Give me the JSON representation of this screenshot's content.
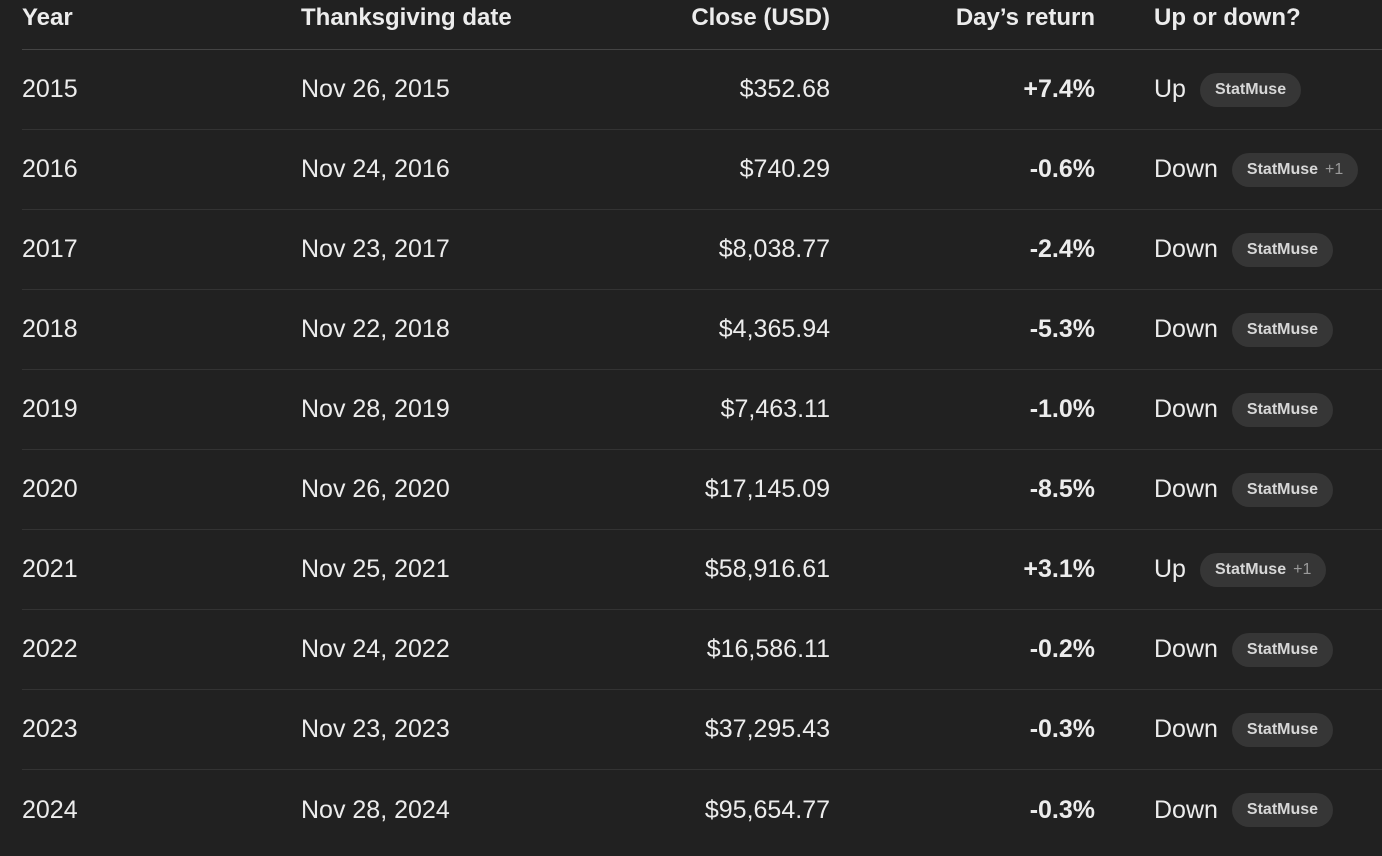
{
  "table": {
    "headers": {
      "year": "Year",
      "date": "Thanksgiving date",
      "close": "Close (USD)",
      "ret": "Day’s return",
      "dir": "Up or down?"
    },
    "rows": [
      {
        "year": "2015",
        "date": "Nov 26, 2015",
        "close": "$352.68",
        "ret": "+7.4%",
        "dir": "Up",
        "source": "StatMuse",
        "extra": ""
      },
      {
        "year": "2016",
        "date": "Nov 24, 2016",
        "close": "$740.29",
        "ret": "-0.6%",
        "dir": "Down",
        "source": "StatMuse",
        "extra": "+1"
      },
      {
        "year": "2017",
        "date": "Nov 23, 2017",
        "close": "$8,038.77",
        "ret": "-2.4%",
        "dir": "Down",
        "source": "StatMuse",
        "extra": ""
      },
      {
        "year": "2018",
        "date": "Nov 22, 2018",
        "close": "$4,365.94",
        "ret": "-5.3%",
        "dir": "Down",
        "source": "StatMuse",
        "extra": ""
      },
      {
        "year": "2019",
        "date": "Nov 28, 2019",
        "close": "$7,463.11",
        "ret": "-1.0%",
        "dir": "Down",
        "source": "StatMuse",
        "extra": ""
      },
      {
        "year": "2020",
        "date": "Nov 26, 2020",
        "close": "$17,145.09",
        "ret": "-8.5%",
        "dir": "Down",
        "source": "StatMuse",
        "extra": ""
      },
      {
        "year": "2021",
        "date": "Nov 25, 2021",
        "close": "$58,916.61",
        "ret": "+3.1%",
        "dir": "Up",
        "source": "StatMuse",
        "extra": "+1"
      },
      {
        "year": "2022",
        "date": "Nov 24, 2022",
        "close": "$16,586.11",
        "ret": "-0.2%",
        "dir": "Down",
        "source": "StatMuse",
        "extra": ""
      },
      {
        "year": "2023",
        "date": "Nov 23, 2023",
        "close": "$37,295.43",
        "ret": "-0.3%",
        "dir": "Down",
        "source": "StatMuse",
        "extra": ""
      },
      {
        "year": "2024",
        "date": "Nov 28, 2024",
        "close": "$95,654.77",
        "ret": "-0.3%",
        "dir": "Down",
        "source": "StatMuse",
        "extra": ""
      }
    ]
  }
}
